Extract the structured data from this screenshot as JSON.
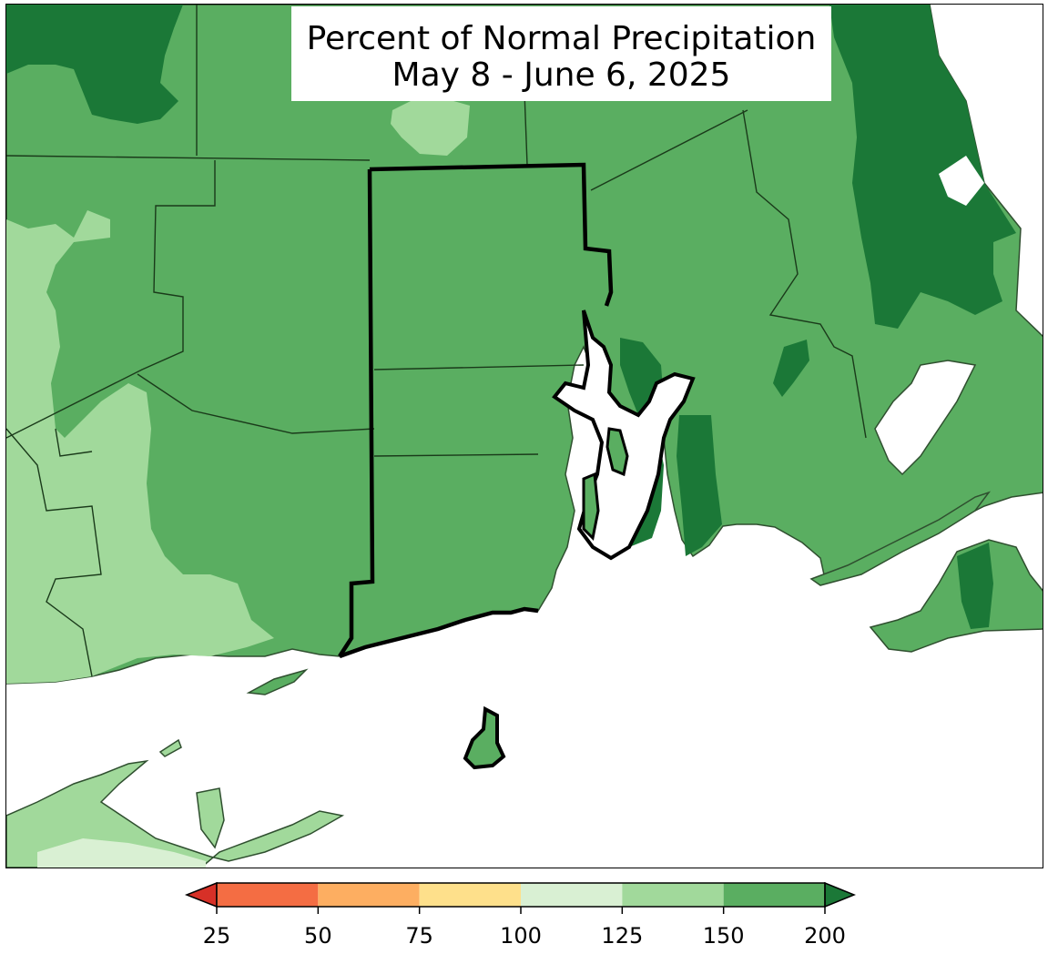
{
  "title": {
    "line1": "Percent of Normal Precipitation",
    "line2": "May 8 - June 6, 2025"
  },
  "colors": {
    "bin_125_150": "#a1d99b",
    "bin_150_200": "#5aae61",
    "bin_over_200": "#1b7837",
    "bin_100_125": "#d9f0d3",
    "water": "#ffffff",
    "state_border": "#000000",
    "county_border": "#1a3a1a"
  },
  "legend": {
    "ticks": [
      "25",
      "50",
      "75",
      "100",
      "125",
      "150",
      "200"
    ],
    "bins": [
      {
        "range": "under 25",
        "color": "#d73027"
      },
      {
        "range": "25-50",
        "color": "#f46d43"
      },
      {
        "range": "50-75",
        "color": "#fdae61"
      },
      {
        "range": "75-100",
        "color": "#fee08b"
      },
      {
        "range": "100-125",
        "color": "#d9f0d3"
      },
      {
        "range": "125-150",
        "color": "#a1d99b"
      },
      {
        "range": "150-200",
        "color": "#5aae61"
      },
      {
        "range": "over 200",
        "color": "#1b7837"
      }
    ]
  }
}
